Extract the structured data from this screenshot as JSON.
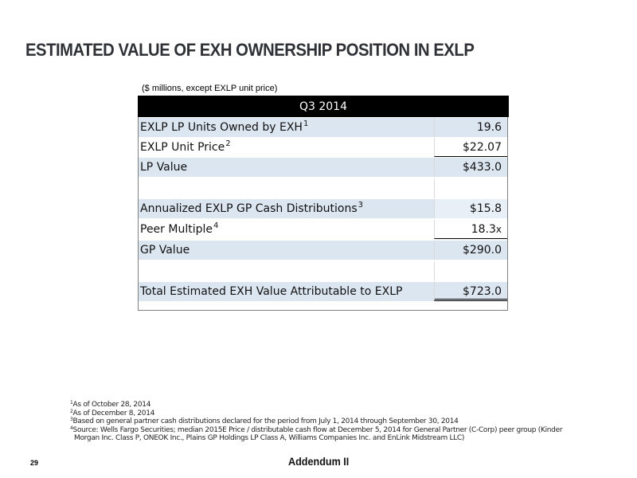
{
  "page": {
    "title": "ESTIMATED VALUE OF EXH OWNERSHIP POSITION IN EXLP",
    "units_note": "($ millions, except EXLP unit price)",
    "page_number": "29",
    "footer_label": "Addendum II"
  },
  "table": {
    "header": "Q3 2014",
    "rows": [
      {
        "label": "EXLP LP Units Owned by EXH",
        "footnote": "1",
        "value": "19.6"
      },
      {
        "label": "EXLP Unit Price",
        "footnote": "2",
        "value": "$22.07"
      },
      {
        "label": "LP Value",
        "footnote": "",
        "value": "$433.0"
      },
      {
        "label": "",
        "footnote": "",
        "value": ""
      },
      {
        "label": "Annualized EXLP GP Cash Distributions",
        "footnote": "3",
        "value": "$15.8"
      },
      {
        "label": "Peer Multiple",
        "footnote": "4",
        "value": "18.3",
        "value_suffix": "x"
      },
      {
        "label": "GP Value",
        "footnote": "",
        "value": "$290.0"
      },
      {
        "label": "",
        "footnote": "",
        "value": ""
      },
      {
        "label": "Total Estimated EXH Value Attributable to EXLP",
        "footnote": "",
        "value": "$723.0"
      }
    ]
  },
  "footnotes": [
    {
      "num": "1",
      "text": "As of October 28, 2014"
    },
    {
      "num": "2",
      "text": "As of December 8, 2014"
    },
    {
      "num": "3",
      "text": "Based on general partner cash distributions declared for the period from July 1, 2014 through September 30, 2014"
    },
    {
      "num": "4",
      "text": "Source: Wells Fargo Securities; median 2015E Price / distributable cash flow at December 5, 2014 for General Partner (C-Corp) peer group (Kinder",
      "continuation": "Morgan Inc. Class P, ONEOK Inc., Plains GP Holdings LP Class A, Williams Companies Inc. and EnLink Midstream LLC)"
    }
  ]
}
